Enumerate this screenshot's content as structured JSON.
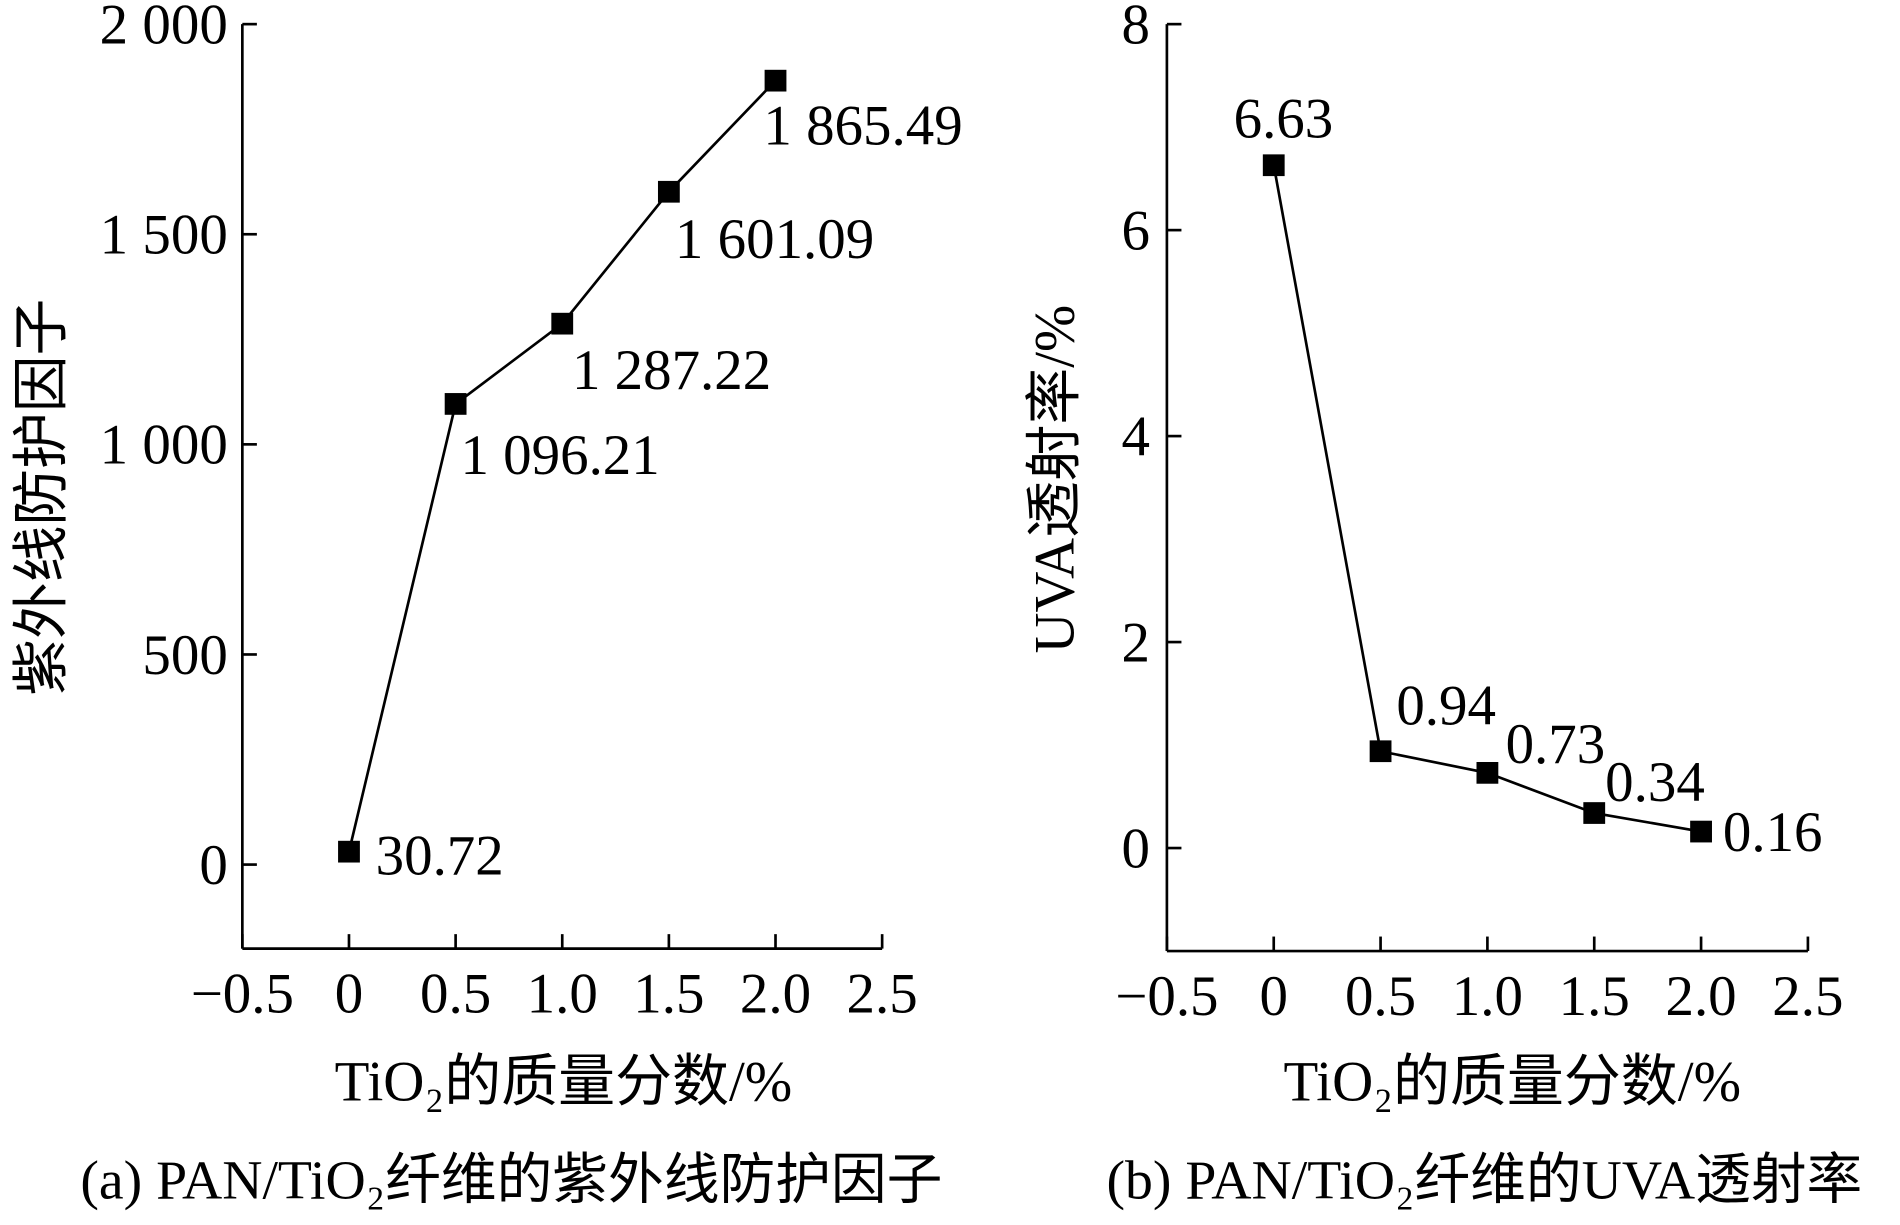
{
  "background": "#ffffff",
  "chart_data": [
    {
      "type": "line",
      "caption": "(a) PAN/TiO₂纤维的紫外线防护因子",
      "xlabel": "TiO₂的质量分数/%",
      "ylabel": "紫外线防护因子",
      "xlim": [
        -0.5,
        2.5
      ],
      "ylim": [
        -200,
        2000
      ],
      "xticks": [
        -0.5,
        0,
        0.5,
        1.0,
        1.5,
        2.0,
        2.5
      ],
      "xtick_labels": [
        "−0.5",
        "0",
        "0.5",
        "1.0",
        "1.5",
        "2.0",
        "2.5"
      ],
      "yticks": [
        0,
        500,
        1000,
        1500,
        2000
      ],
      "ytick_labels": [
        "0",
        "500",
        "1 000",
        "1 500",
        "2 000"
      ],
      "grid": false,
      "series": [
        {
          "x": [
            0,
            0.5,
            1.0,
            1.5,
            2.0
          ],
          "y": [
            30.72,
            1096.21,
            1287.22,
            1601.09,
            1865.49
          ],
          "data_labels": [
            "30.72",
            "1 096.21",
            "1 287.22",
            "1 601.09",
            "1 865.49"
          ],
          "marker": "square",
          "color": "#000000"
        }
      ]
    },
    {
      "type": "line",
      "caption": "(b) PAN/TiO₂纤维的UVA透射率",
      "xlabel": "TiO₂的质量分数/%",
      "ylabel": "UVA透射率/%",
      "xlim": [
        -0.5,
        2.5
      ],
      "ylim": [
        -1,
        8
      ],
      "xticks": [
        -0.5,
        0,
        0.5,
        1.0,
        1.5,
        2.0,
        2.5
      ],
      "xtick_labels": [
        "−0.5",
        "0",
        "0.5",
        "1.0",
        "1.5",
        "2.0",
        "2.5"
      ],
      "yticks": [
        0,
        2,
        4,
        6,
        8
      ],
      "ytick_labels": [
        "0",
        "2",
        "4",
        "6",
        "8"
      ],
      "grid": false,
      "series": [
        {
          "x": [
            0,
            0.5,
            1.0,
            1.5,
            2.0
          ],
          "y": [
            6.63,
            0.94,
            0.73,
            0.34,
            0.16
          ],
          "data_labels": [
            "6.63",
            "0.94",
            "0.73",
            "0.34",
            "0.16"
          ],
          "marker": "square",
          "color": "#000000"
        }
      ]
    }
  ]
}
